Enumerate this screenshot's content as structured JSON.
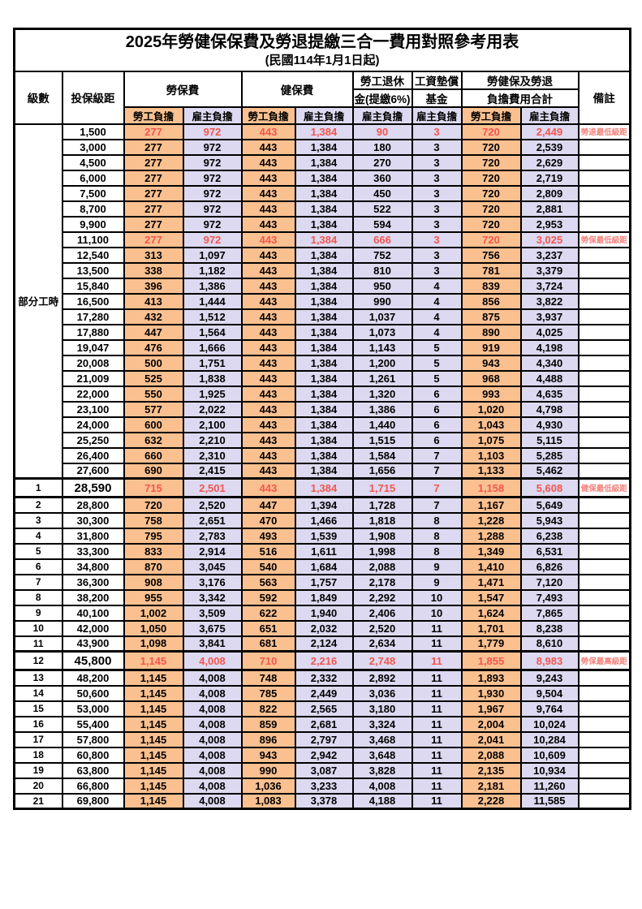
{
  "title": "2025年勞健保保費及勞退提繳三合一費用對照參考用表",
  "subtitle": "(民國114年1月1日起)",
  "colors": {
    "employee_column_bg": "#FAC090",
    "employer_column_bg": "#DCD9F0",
    "highlight_value_text": "#F4564F",
    "note_text": "#F4837C",
    "border": "#000000"
  },
  "header": {
    "level": "級數",
    "bracket": "投保級距",
    "labor": "勞保費",
    "health": "健保費",
    "pension_line1": "勞工退休",
    "pension_line2": "金(提繳6%)",
    "wage_fund_line1": "工資墊償",
    "wage_fund_line2": "基金",
    "total_line1": "勞健保及勞退",
    "total_line2": "負擔費用合計",
    "note": "備註",
    "employee": "勞工負擔",
    "employer": "雇主負擔"
  },
  "part_time_label": "部分工時",
  "rows": [
    {
      "lv": null,
      "br": "1,500",
      "le": "277",
      "lr": "972",
      "he": "443",
      "hr": "1,384",
      "pe": "90",
      "wf": "3",
      "te": "720",
      "ter": "2,449",
      "note": "勞退最低級距",
      "red": true,
      "special": false
    },
    {
      "lv": null,
      "br": "3,000",
      "le": "277",
      "lr": "972",
      "he": "443",
      "hr": "1,384",
      "pe": "180",
      "wf": "3",
      "te": "720",
      "ter": "2,539",
      "note": "",
      "red": false,
      "special": false
    },
    {
      "lv": null,
      "br": "4,500",
      "le": "277",
      "lr": "972",
      "he": "443",
      "hr": "1,384",
      "pe": "270",
      "wf": "3",
      "te": "720",
      "ter": "2,629",
      "note": "",
      "red": false,
      "special": false
    },
    {
      "lv": null,
      "br": "6,000",
      "le": "277",
      "lr": "972",
      "he": "443",
      "hr": "1,384",
      "pe": "360",
      "wf": "3",
      "te": "720",
      "ter": "2,719",
      "note": "",
      "red": false,
      "special": false
    },
    {
      "lv": null,
      "br": "7,500",
      "le": "277",
      "lr": "972",
      "he": "443",
      "hr": "1,384",
      "pe": "450",
      "wf": "3",
      "te": "720",
      "ter": "2,809",
      "note": "",
      "red": false,
      "special": false
    },
    {
      "lv": null,
      "br": "8,700",
      "le": "277",
      "lr": "972",
      "he": "443",
      "hr": "1,384",
      "pe": "522",
      "wf": "3",
      "te": "720",
      "ter": "2,881",
      "note": "",
      "red": false,
      "special": false
    },
    {
      "lv": null,
      "br": "9,900",
      "le": "277",
      "lr": "972",
      "he": "443",
      "hr": "1,384",
      "pe": "594",
      "wf": "3",
      "te": "720",
      "ter": "2,953",
      "note": "",
      "red": false,
      "special": false
    },
    {
      "lv": null,
      "br": "11,100",
      "le": "277",
      "lr": "972",
      "he": "443",
      "hr": "1,384",
      "pe": "666",
      "wf": "3",
      "te": "720",
      "ter": "3,025",
      "note": "勞保最低級距",
      "red": true,
      "special": false
    },
    {
      "lv": null,
      "br": "12,540",
      "le": "313",
      "lr": "1,097",
      "he": "443",
      "hr": "1,384",
      "pe": "752",
      "wf": "3",
      "te": "756",
      "ter": "3,237",
      "note": "",
      "red": false,
      "special": false
    },
    {
      "lv": null,
      "br": "13,500",
      "le": "338",
      "lr": "1,182",
      "he": "443",
      "hr": "1,384",
      "pe": "810",
      "wf": "3",
      "te": "781",
      "ter": "3,379",
      "note": "",
      "red": false,
      "special": false
    },
    {
      "lv": null,
      "br": "15,840",
      "le": "396",
      "lr": "1,386",
      "he": "443",
      "hr": "1,384",
      "pe": "950",
      "wf": "4",
      "te": "839",
      "ter": "3,724",
      "note": "",
      "red": false,
      "special": false
    },
    {
      "lv": null,
      "br": "16,500",
      "le": "413",
      "lr": "1,444",
      "he": "443",
      "hr": "1,384",
      "pe": "990",
      "wf": "4",
      "te": "856",
      "ter": "3,822",
      "note": "",
      "red": false,
      "special": false
    },
    {
      "lv": null,
      "br": "17,280",
      "le": "432",
      "lr": "1,512",
      "he": "443",
      "hr": "1,384",
      "pe": "1,037",
      "wf": "4",
      "te": "875",
      "ter": "3,937",
      "note": "",
      "red": false,
      "special": false
    },
    {
      "lv": null,
      "br": "17,880",
      "le": "447",
      "lr": "1,564",
      "he": "443",
      "hr": "1,384",
      "pe": "1,073",
      "wf": "4",
      "te": "890",
      "ter": "4,025",
      "note": "",
      "red": false,
      "special": false
    },
    {
      "lv": null,
      "br": "19,047",
      "le": "476",
      "lr": "1,666",
      "he": "443",
      "hr": "1,384",
      "pe": "1,143",
      "wf": "5",
      "te": "919",
      "ter": "4,198",
      "note": "",
      "red": false,
      "special": false
    },
    {
      "lv": null,
      "br": "20,008",
      "le": "500",
      "lr": "1,751",
      "he": "443",
      "hr": "1,384",
      "pe": "1,200",
      "wf": "5",
      "te": "943",
      "ter": "4,340",
      "note": "",
      "red": false,
      "special": false
    },
    {
      "lv": null,
      "br": "21,009",
      "le": "525",
      "lr": "1,838",
      "he": "443",
      "hr": "1,384",
      "pe": "1,261",
      "wf": "5",
      "te": "968",
      "ter": "4,488",
      "note": "",
      "red": false,
      "special": false
    },
    {
      "lv": null,
      "br": "22,000",
      "le": "550",
      "lr": "1,925",
      "he": "443",
      "hr": "1,384",
      "pe": "1,320",
      "wf": "6",
      "te": "993",
      "ter": "4,635",
      "note": "",
      "red": false,
      "special": false
    },
    {
      "lv": null,
      "br": "23,100",
      "le": "577",
      "lr": "2,022",
      "he": "443",
      "hr": "1,384",
      "pe": "1,386",
      "wf": "6",
      "te": "1,020",
      "ter": "4,798",
      "note": "",
      "red": false,
      "special": false
    },
    {
      "lv": null,
      "br": "24,000",
      "le": "600",
      "lr": "2,100",
      "he": "443",
      "hr": "1,384",
      "pe": "1,440",
      "wf": "6",
      "te": "1,043",
      "ter": "4,930",
      "note": "",
      "red": false,
      "special": false
    },
    {
      "lv": null,
      "br": "25,250",
      "le": "632",
      "lr": "2,210",
      "he": "443",
      "hr": "1,384",
      "pe": "1,515",
      "wf": "6",
      "te": "1,075",
      "ter": "5,115",
      "note": "",
      "red": false,
      "special": false
    },
    {
      "lv": null,
      "br": "26,400",
      "le": "660",
      "lr": "2,310",
      "he": "443",
      "hr": "1,384",
      "pe": "1,584",
      "wf": "7",
      "te": "1,103",
      "ter": "5,285",
      "note": "",
      "red": false,
      "special": false
    },
    {
      "lv": null,
      "br": "27,600",
      "le": "690",
      "lr": "2,415",
      "he": "443",
      "hr": "1,384",
      "pe": "1,656",
      "wf": "7",
      "te": "1,133",
      "ter": "5,462",
      "note": "",
      "red": false,
      "special": false
    },
    {
      "lv": "1",
      "br": "28,590",
      "le": "715",
      "lr": "2,501",
      "he": "443",
      "hr": "1,384",
      "pe": "1,715",
      "wf": "7",
      "te": "1,158",
      "ter": "5,608",
      "note": "健保最低級距",
      "red": true,
      "special": true
    },
    {
      "lv": "2",
      "br": "28,800",
      "le": "720",
      "lr": "2,520",
      "he": "447",
      "hr": "1,394",
      "pe": "1,728",
      "wf": "7",
      "te": "1,167",
      "ter": "5,649",
      "note": "",
      "red": false,
      "special": false
    },
    {
      "lv": "3",
      "br": "30,300",
      "le": "758",
      "lr": "2,651",
      "he": "470",
      "hr": "1,466",
      "pe": "1,818",
      "wf": "8",
      "te": "1,228",
      "ter": "5,943",
      "note": "",
      "red": false,
      "special": false
    },
    {
      "lv": "4",
      "br": "31,800",
      "le": "795",
      "lr": "2,783",
      "he": "493",
      "hr": "1,539",
      "pe": "1,908",
      "wf": "8",
      "te": "1,288",
      "ter": "6,238",
      "note": "",
      "red": false,
      "special": false
    },
    {
      "lv": "5",
      "br": "33,300",
      "le": "833",
      "lr": "2,914",
      "he": "516",
      "hr": "1,611",
      "pe": "1,998",
      "wf": "8",
      "te": "1,349",
      "ter": "6,531",
      "note": "",
      "red": false,
      "special": false
    },
    {
      "lv": "6",
      "br": "34,800",
      "le": "870",
      "lr": "3,045",
      "he": "540",
      "hr": "1,684",
      "pe": "2,088",
      "wf": "9",
      "te": "1,410",
      "ter": "6,826",
      "note": "",
      "red": false,
      "special": false
    },
    {
      "lv": "7",
      "br": "36,300",
      "le": "908",
      "lr": "3,176",
      "he": "563",
      "hr": "1,757",
      "pe": "2,178",
      "wf": "9",
      "te": "1,471",
      "ter": "7,120",
      "note": "",
      "red": false,
      "special": false
    },
    {
      "lv": "8",
      "br": "38,200",
      "le": "955",
      "lr": "3,342",
      "he": "592",
      "hr": "1,849",
      "pe": "2,292",
      "wf": "10",
      "te": "1,547",
      "ter": "7,493",
      "note": "",
      "red": false,
      "special": false
    },
    {
      "lv": "9",
      "br": "40,100",
      "le": "1,002",
      "lr": "3,509",
      "he": "622",
      "hr": "1,940",
      "pe": "2,406",
      "wf": "10",
      "te": "1,624",
      "ter": "7,865",
      "note": "",
      "red": false,
      "special": false
    },
    {
      "lv": "10",
      "br": "42,000",
      "le": "1,050",
      "lr": "3,675",
      "he": "651",
      "hr": "2,032",
      "pe": "2,520",
      "wf": "11",
      "te": "1,701",
      "ter": "8,238",
      "note": "",
      "red": false,
      "special": false
    },
    {
      "lv": "11",
      "br": "43,900",
      "le": "1,098",
      "lr": "3,841",
      "he": "681",
      "hr": "2,124",
      "pe": "2,634",
      "wf": "11",
      "te": "1,779",
      "ter": "8,610",
      "note": "",
      "red": false,
      "special": false
    },
    {
      "lv": "12",
      "br": "45,800",
      "le": "1,145",
      "lr": "4,008",
      "he": "710",
      "hr": "2,216",
      "pe": "2,748",
      "wf": "11",
      "te": "1,855",
      "ter": "8,983",
      "note": "勞保最高級距",
      "red": true,
      "special": true
    },
    {
      "lv": "13",
      "br": "48,200",
      "le": "1,145",
      "lr": "4,008",
      "he": "748",
      "hr": "2,332",
      "pe": "2,892",
      "wf": "11",
      "te": "1,893",
      "ter": "9,243",
      "note": "",
      "red": false,
      "special": false
    },
    {
      "lv": "14",
      "br": "50,600",
      "le": "1,145",
      "lr": "4,008",
      "he": "785",
      "hr": "2,449",
      "pe": "3,036",
      "wf": "11",
      "te": "1,930",
      "ter": "9,504",
      "note": "",
      "red": false,
      "special": false
    },
    {
      "lv": "15",
      "br": "53,000",
      "le": "1,145",
      "lr": "4,008",
      "he": "822",
      "hr": "2,565",
      "pe": "3,180",
      "wf": "11",
      "te": "1,967",
      "ter": "9,764",
      "note": "",
      "red": false,
      "special": false
    },
    {
      "lv": "16",
      "br": "55,400",
      "le": "1,145",
      "lr": "4,008",
      "he": "859",
      "hr": "2,681",
      "pe": "3,324",
      "wf": "11",
      "te": "2,004",
      "ter": "10,024",
      "note": "",
      "red": false,
      "special": false
    },
    {
      "lv": "17",
      "br": "57,800",
      "le": "1,145",
      "lr": "4,008",
      "he": "896",
      "hr": "2,797",
      "pe": "3,468",
      "wf": "11",
      "te": "2,041",
      "ter": "10,284",
      "note": "",
      "red": false,
      "special": false
    },
    {
      "lv": "18",
      "br": "60,800",
      "le": "1,145",
      "lr": "4,008",
      "he": "943",
      "hr": "2,942",
      "pe": "3,648",
      "wf": "11",
      "te": "2,088",
      "ter": "10,609",
      "note": "",
      "red": false,
      "special": false
    },
    {
      "lv": "19",
      "br": "63,800",
      "le": "1,145",
      "lr": "4,008",
      "he": "990",
      "hr": "3,087",
      "pe": "3,828",
      "wf": "11",
      "te": "2,135",
      "ter": "10,934",
      "note": "",
      "red": false,
      "special": false
    },
    {
      "lv": "20",
      "br": "66,800",
      "le": "1,145",
      "lr": "4,008",
      "he": "1,036",
      "hr": "3,233",
      "pe": "4,008",
      "wf": "11",
      "te": "2,181",
      "ter": "11,260",
      "note": "",
      "red": false,
      "special": false
    },
    {
      "lv": "21",
      "br": "69,800",
      "le": "1,145",
      "lr": "4,008",
      "he": "1,083",
      "hr": "3,378",
      "pe": "4,188",
      "wf": "11",
      "te": "2,228",
      "ter": "11,585",
      "note": "",
      "red": false,
      "special": false
    }
  ]
}
